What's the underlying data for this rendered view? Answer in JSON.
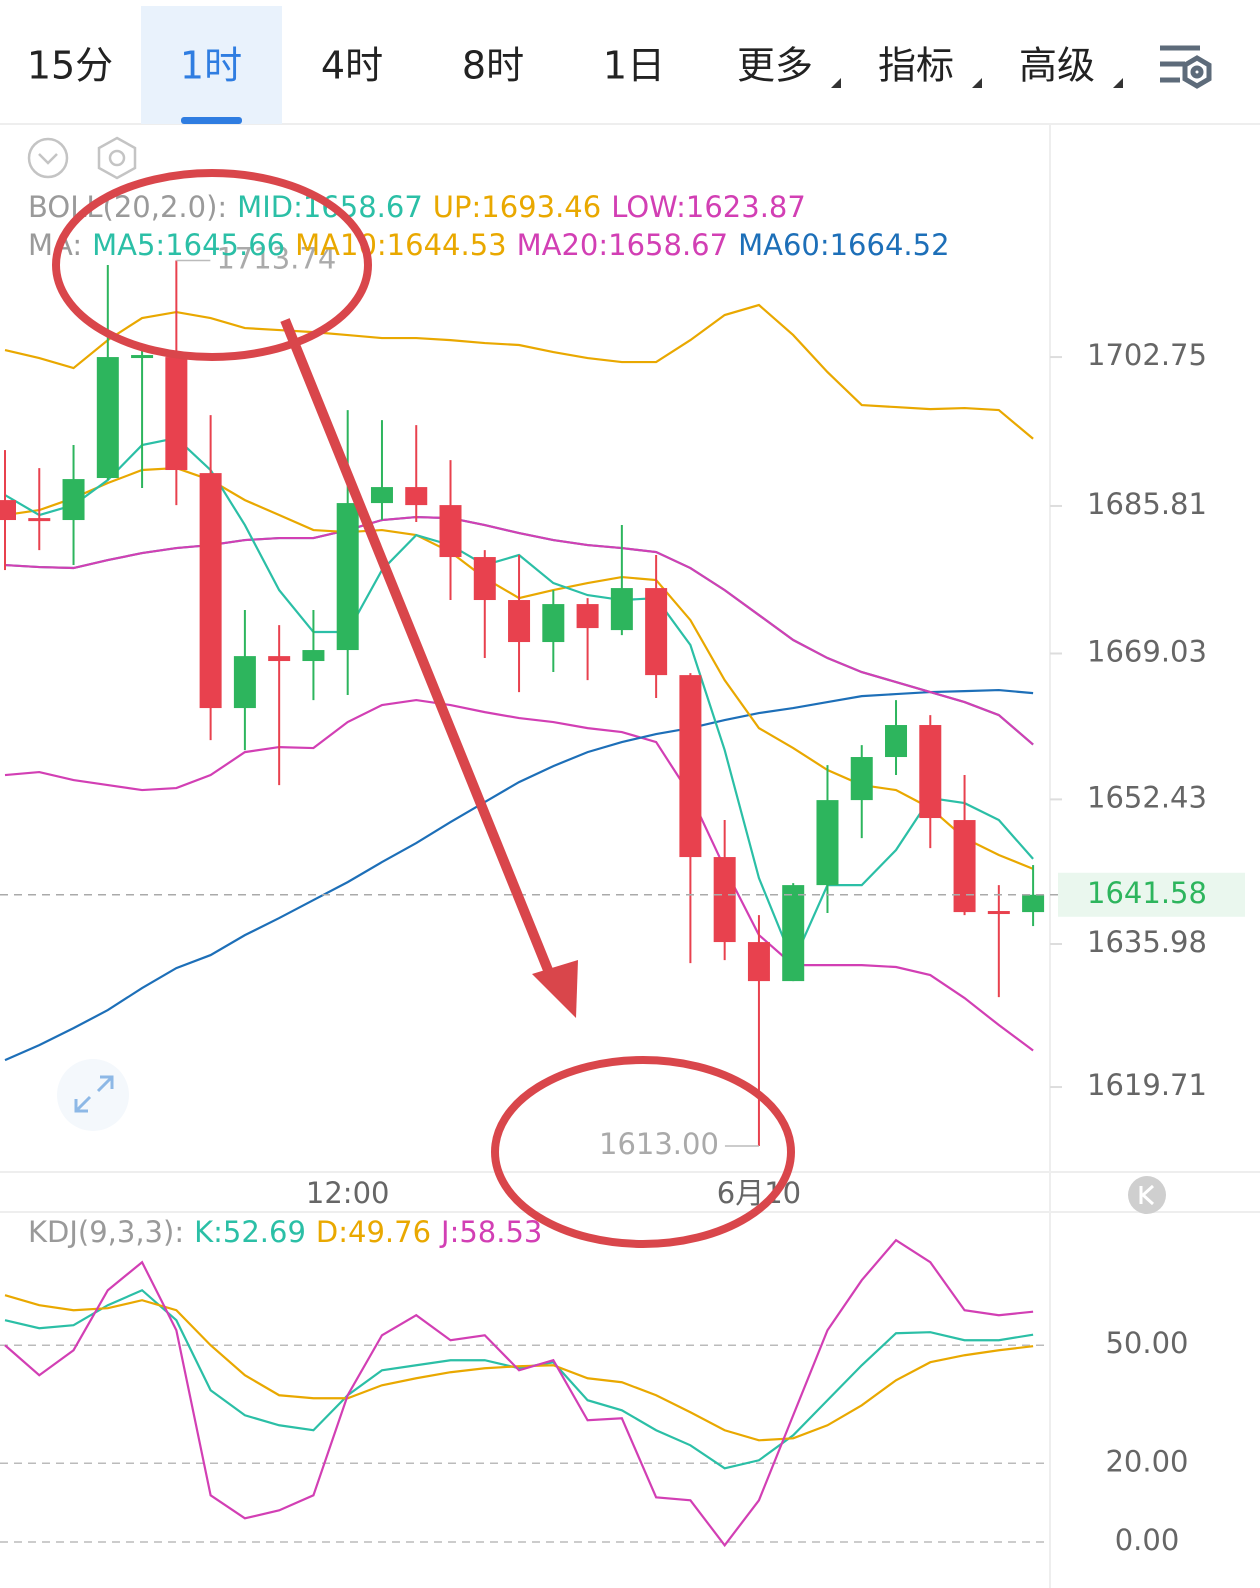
{
  "tabs": [
    "15分",
    "1时",
    "4时",
    "8时",
    "1日",
    "更多",
    "指标",
    "高级"
  ],
  "active_tab": 1,
  "chart_data": [
    {
      "type": "candlestick",
      "categories": [
        null,
        null,
        null,
        null,
        null,
        null,
        null,
        null,
        null,
        null,
        "12:00",
        null,
        null,
        null,
        null,
        null,
        null,
        null,
        null,
        null,
        null,
        null,
        "6月10",
        null,
        null,
        null,
        null,
        null,
        null,
        null,
        null
      ],
      "open": [
        1686.48,
        1684.43,
        1684.21,
        1688.99,
        1702.64,
        1702.75,
        1689.55,
        1662.82,
        1668.73,
        1668.17,
        1669.42,
        1686.14,
        1687.96,
        1685.91,
        1680.0,
        1675.11,
        1670.33,
        1674.65,
        1671.69,
        1676.47,
        1666.57,
        1645.87,
        1636.2,
        1631.76,
        1642.68,
        1652.35,
        1657.25,
        1660.89,
        1650.08,
        1639.73,
        1639.61
      ],
      "high": [
        1692.17,
        1690.12,
        1692.74,
        1713.22,
        1704.12,
        1713.74,
        1696.15,
        1673.97,
        1672.26,
        1673.97,
        1696.72,
        1695.58,
        1695.01,
        1691.03,
        1680.79,
        1680.23,
        1676.24,
        1675.33,
        1683.64,
        1680.23,
        1666.8,
        1650.08,
        1639.27,
        1642.91,
        1656.33,
        1658.61,
        1663.73,
        1662.02,
        1655.2,
        1642.68,
        1644.96
      ],
      "low": [
        1678.52,
        1680.79,
        1679.09,
        1688.76,
        1687.85,
        1685.91,
        1659.18,
        1658.04,
        1654.06,
        1663.73,
        1664.3,
        1684.21,
        1683.98,
        1675.11,
        1668.51,
        1664.64,
        1666.92,
        1666.0,
        1671.12,
        1663.96,
        1633.81,
        1634.15,
        1613.0,
        1631.76,
        1639.5,
        1648.03,
        1655.2,
        1646.89,
        1639.27,
        1629.94,
        1638.02
      ],
      "close": [
        1684.21,
        1684.09,
        1688.87,
        1702.75,
        1702.98,
        1689.9,
        1662.82,
        1668.73,
        1668.17,
        1669.42,
        1686.14,
        1687.96,
        1685.91,
        1680.0,
        1675.11,
        1670.33,
        1674.65,
        1671.92,
        1676.47,
        1666.57,
        1645.87,
        1636.2,
        1631.76,
        1642.68,
        1652.35,
        1657.25,
        1660.89,
        1650.31,
        1639.61,
        1639.5,
        1641.58
      ],
      "up_color": "#2db55d",
      "down_color": "#e8414e",
      "indicator_labels": [
        "BOLL(20,2.0):",
        "MA:"
      ],
      "series": [
        {
          "name": "MID:1658.67",
          "group": 0,
          "color": "#2bbfa6",
          "values": [
            1679.09,
            1678.86,
            1678.75,
            1679.66,
            1680.45,
            1681.02,
            1681.36,
            1681.93,
            1682.16,
            1682.16,
            1683.07,
            1684.21,
            1684.55,
            1684.43,
            1683.64,
            1682.73,
            1681.93,
            1681.36,
            1681.02,
            1680.57,
            1678.75,
            1676.24,
            1673.4,
            1670.56,
            1668.51,
            1666.91,
            1665.78,
            1664.64,
            1663.5,
            1662.02,
            1658.67
          ]
        },
        {
          "name": "UP:1693.46",
          "group": 0,
          "color": "#e9a800",
          "values": [
            1703.55,
            1702.64,
            1701.5,
            1704.68,
            1707.19,
            1707.87,
            1707.19,
            1706.05,
            1705.82,
            1705.59,
            1705.25,
            1704.91,
            1704.91,
            1704.68,
            1704.34,
            1704.12,
            1703.32,
            1702.64,
            1702.18,
            1702.18,
            1704.68,
            1707.53,
            1708.67,
            1705.25,
            1701.04,
            1697.29,
            1697.06,
            1696.83,
            1696.95,
            1696.72,
            1693.46
          ]
        },
        {
          "name": "LOW:1623.87",
          "group": 0,
          "color": "#d23fb4",
          "values": [
            1655.2,
            1655.54,
            1654.63,
            1654.06,
            1653.49,
            1653.72,
            1655.2,
            1657.81,
            1658.38,
            1658.27,
            1661.23,
            1663.16,
            1663.73,
            1663.16,
            1662.36,
            1661.68,
            1661.23,
            1660.54,
            1660.09,
            1658.95,
            1652.92,
            1644.62,
            1637.0,
            1633.58,
            1633.58,
            1633.58,
            1633.36,
            1632.45,
            1629.83,
            1626.76,
            1623.87
          ]
        },
        {
          "name": "MA5:1645.66",
          "group": 1,
          "color": "#2bbfa6",
          "values": [
            1687.05,
            1684.78,
            1685.91,
            1688.76,
            1692.74,
            1693.54,
            1689.9,
            1683.64,
            1676.24,
            1671.47,
            1671.47,
            1678.52,
            1682.5,
            1681.36,
            1679.09,
            1680.23,
            1677.04,
            1675.67,
            1675.11,
            1675.33,
            1669.99,
            1658.04,
            1643.48,
            1633.92,
            1642.68,
            1642.68,
            1646.67,
            1652.58,
            1652.01,
            1650.08,
            1645.66
          ]
        },
        {
          "name": "MA10:1644.53",
          "group": 1,
          "color": "#e9a800",
          "values": [
            1684.78,
            1685.34,
            1686.71,
            1688.42,
            1689.9,
            1690.12,
            1688.76,
            1686.48,
            1684.78,
            1683.07,
            1682.84,
            1683.07,
            1682.5,
            1680.57,
            1677.61,
            1675.33,
            1676.24,
            1677.04,
            1677.72,
            1677.38,
            1672.83,
            1666.0,
            1660.54,
            1658.27,
            1655.77,
            1654.06,
            1653.49,
            1651.44,
            1648.03,
            1646.1,
            1644.53
          ]
        },
        {
          "name": "MA20:1658.67",
          "group": 1,
          "color": "#d23fb4",
          "values": [
            1679.09,
            1678.86,
            1678.75,
            1679.66,
            1680.45,
            1681.02,
            1681.36,
            1681.93,
            1682.16,
            1682.16,
            1683.07,
            1684.21,
            1684.55,
            1684.43,
            1683.64,
            1682.73,
            1681.93,
            1681.36,
            1681.02,
            1680.57,
            1678.75,
            1676.24,
            1673.4,
            1670.56,
            1668.51,
            1666.91,
            1665.78,
            1664.64,
            1663.5,
            1662.02,
            1658.67
          ]
        },
        {
          "name": "MA60:1664.52",
          "group": 1,
          "color": "#1d6fb8",
          "values": [
            1622.77,
            1624.48,
            1626.41,
            1628.46,
            1630.97,
            1633.24,
            1634.72,
            1636.99,
            1638.93,
            1640.98,
            1643.02,
            1645.3,
            1647.46,
            1649.85,
            1652.13,
            1654.4,
            1656.22,
            1657.81,
            1658.95,
            1659.86,
            1660.54,
            1661.45,
            1662.25,
            1662.82,
            1663.5,
            1664.18,
            1664.41,
            1664.64,
            1664.75,
            1664.87,
            1664.52
          ]
        }
      ],
      "ylim": [
        1610.27,
        1729.15
      ],
      "yticks": [
        1702.75,
        1685.81,
        1669.03,
        1652.43,
        1635.98,
        1619.71
      ],
      "grid": false,
      "last_price": 1641.58,
      "max_label": 1713.74,
      "min_label": {
        "value": 1613,
        "label": "1613.00"
      }
    },
    {
      "type": "line",
      "indicator_label": "KDJ(9,3,3):",
      "series": [
        {
          "name": "K:52.69",
          "color": "#2bbfa6",
          "values": [
            56.36,
            54.32,
            55.09,
            60.17,
            63.98,
            56.36,
            38.56,
            32.2,
            29.66,
            28.39,
            37.29,
            43.64,
            44.91,
            46.19,
            46.19,
            44.15,
            45.68,
            36.02,
            33.47,
            28.39,
            24.57,
            18.73,
            20.76,
            27.12,
            36.02,
            44.91,
            53.05,
            53.31,
            51.27,
            51.27,
            52.69
          ]
        },
        {
          "name": "D:49.76",
          "color": "#e9a800",
          "values": [
            62.71,
            60.17,
            58.9,
            59.41,
            61.44,
            58.9,
            50.0,
            42.37,
            37.29,
            36.52,
            36.52,
            39.83,
            41.61,
            43.14,
            44.15,
            44.66,
            44.91,
            41.61,
            40.59,
            37.29,
            32.96,
            28.39,
            25.84,
            26.35,
            29.66,
            34.74,
            41.1,
            45.68,
            47.46,
            48.73,
            49.76
          ]
        },
        {
          "name": "J:58.53",
          "color": "#d23fb4",
          "values": [
            50.0,
            42.37,
            48.73,
            63.98,
            71.1,
            53.81,
            11.86,
            6.01,
            8.04,
            11.86,
            37.29,
            52.54,
            57.63,
            51.27,
            52.54,
            43.64,
            46.19,
            30.93,
            31.44,
            11.35,
            10.59,
            -0.85,
            10.59,
            32.2,
            53.81,
            66.53,
            76.7,
            71.1,
            58.9,
            57.63,
            58.53
          ]
        }
      ],
      "ylim": [
        -11.7,
        83.1
      ],
      "yticks": [
        {
          "value": 50,
          "label": "50.00"
        },
        {
          "value": 20,
          "label": "20.00"
        },
        {
          "value": 0,
          "label": "0.00"
        }
      ],
      "grid": true
    }
  ]
}
